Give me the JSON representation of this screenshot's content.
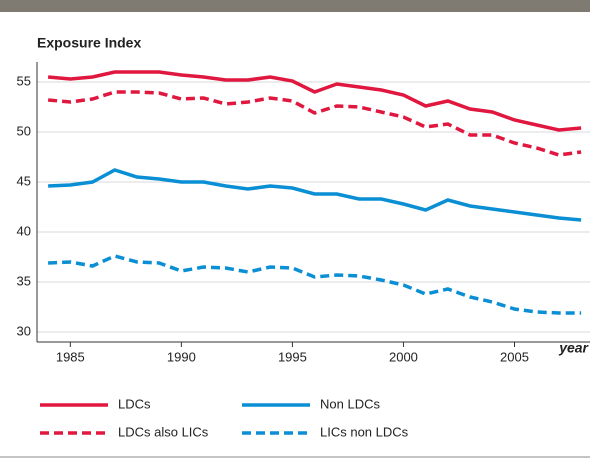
{
  "chart_data": {
    "type": "line",
    "y_label": "Exposure Index",
    "x_label": "year",
    "x": [
      1984,
      1985,
      1986,
      1987,
      1988,
      1989,
      1990,
      1991,
      1992,
      1993,
      1994,
      1995,
      1996,
      1997,
      1998,
      1999,
      2000,
      2001,
      2002,
      2003,
      2004,
      2005,
      2006,
      2007,
      2008
    ],
    "series": [
      {
        "name": "LDCs",
        "color": "#e0173f",
        "style": "solid",
        "values": [
          55.5,
          55.3,
          55.5,
          56,
          56,
          56,
          55.7,
          55.5,
          55.2,
          55.2,
          55.5,
          55.1,
          54,
          54.8,
          54.5,
          54.2,
          53.7,
          52.6,
          53.1,
          52.3,
          52,
          51.2,
          50.7,
          50.2,
          50.4
        ]
      },
      {
        "name": "Non LDCs",
        "color": "#0a8fd5",
        "style": "solid",
        "values": [
          44.6,
          44.7,
          45,
          46.2,
          45.5,
          45.3,
          45,
          45,
          44.6,
          44.3,
          44.6,
          44.4,
          43.8,
          43.8,
          43.3,
          43.3,
          42.8,
          42.2,
          43.2,
          42.6,
          42.3,
          42,
          41.7,
          41.4,
          41.2
        ]
      },
      {
        "name": "LDCs also LICs",
        "color": "#e0173f",
        "style": "dashed",
        "values": [
          53.2,
          53,
          53.3,
          54,
          54,
          53.9,
          53.3,
          53.4,
          52.8,
          53,
          53.4,
          53.1,
          51.9,
          52.6,
          52.5,
          52,
          51.5,
          50.5,
          50.8,
          49.7,
          49.7,
          48.9,
          48.4,
          47.7,
          48
        ]
      },
      {
        "name": "LICs non LDCs",
        "color": "#0a8fd5",
        "style": "dashed",
        "values": [
          36.9,
          37,
          36.6,
          37.6,
          37,
          36.9,
          36.1,
          36.5,
          36.4,
          36,
          36.5,
          36.4,
          35.5,
          35.7,
          35.6,
          35.2,
          34.7,
          33.8,
          34.3,
          33.5,
          33,
          32.3,
          32,
          31.9,
          31.9
        ]
      }
    ],
    "xlim": [
      1983.5,
      2008.4
    ],
    "ylim": [
      29,
      57
    ],
    "xticks": [
      1985,
      1990,
      1995,
      2000,
      2005
    ],
    "yticks": [
      30,
      35,
      40,
      45,
      50,
      55
    ],
    "grid": true
  }
}
